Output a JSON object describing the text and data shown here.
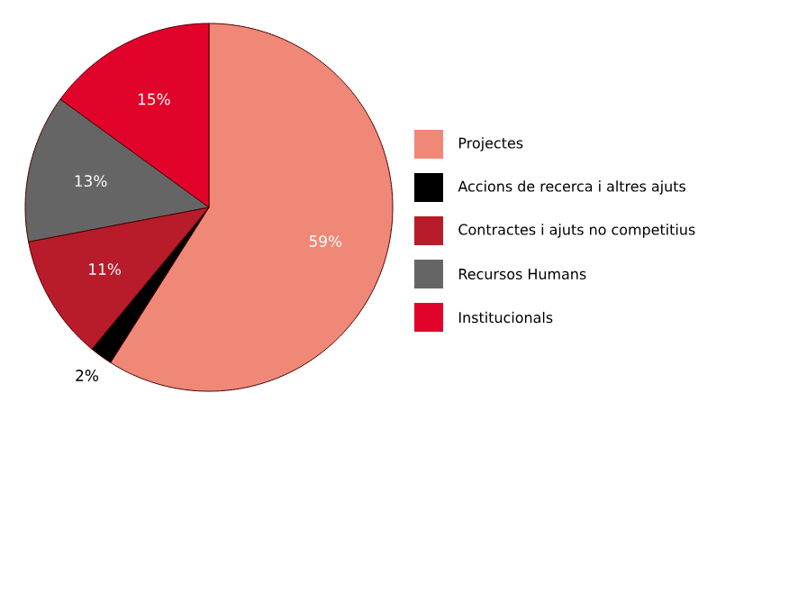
{
  "chart_data": {
    "type": "pie",
    "categories": [
      "Projectes",
      "Accions de recerca i altres ajuts",
      "Contractes i ajuts no competitius",
      "Recursos Humans",
      "Institucionals"
    ],
    "values": [
      59,
      2,
      11,
      13,
      15
    ],
    "colors": [
      "#f08878",
      "#000000",
      "#b81c2a",
      "#656565",
      "#e2032b"
    ],
    "value_labels": [
      "59%",
      "2%",
      "11%",
      "13%",
      "15%"
    ],
    "legend": "right"
  }
}
